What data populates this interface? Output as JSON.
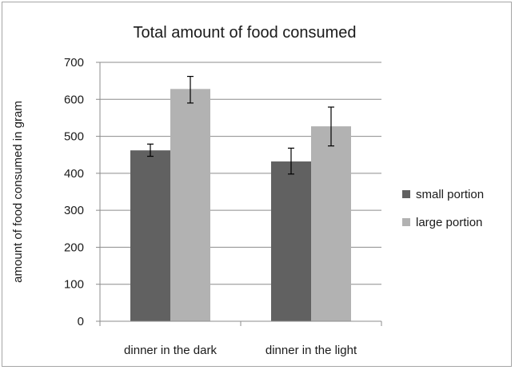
{
  "chart_data": {
    "type": "bar",
    "title": "Total amount of food consumed",
    "xlabel": "",
    "ylabel": "amount of food consumed in gram",
    "categories": [
      "dinner in the dark",
      "dinner in the light"
    ],
    "ylim": [
      0,
      700
    ],
    "yticks": [
      0,
      100,
      200,
      300,
      400,
      500,
      600,
      700
    ],
    "grid": true,
    "legend_position": "right",
    "series": [
      {
        "name": "small portion",
        "color": "#616161",
        "values": [
          462,
          432
        ],
        "error_low": [
          446,
          398
        ],
        "error_high": [
          479,
          468
        ]
      },
      {
        "name": "large portion",
        "color": "#b2b2b2",
        "values": [
          628,
          527
        ],
        "error_low": [
          590,
          474
        ],
        "error_high": [
          662,
          579
        ]
      }
    ]
  }
}
